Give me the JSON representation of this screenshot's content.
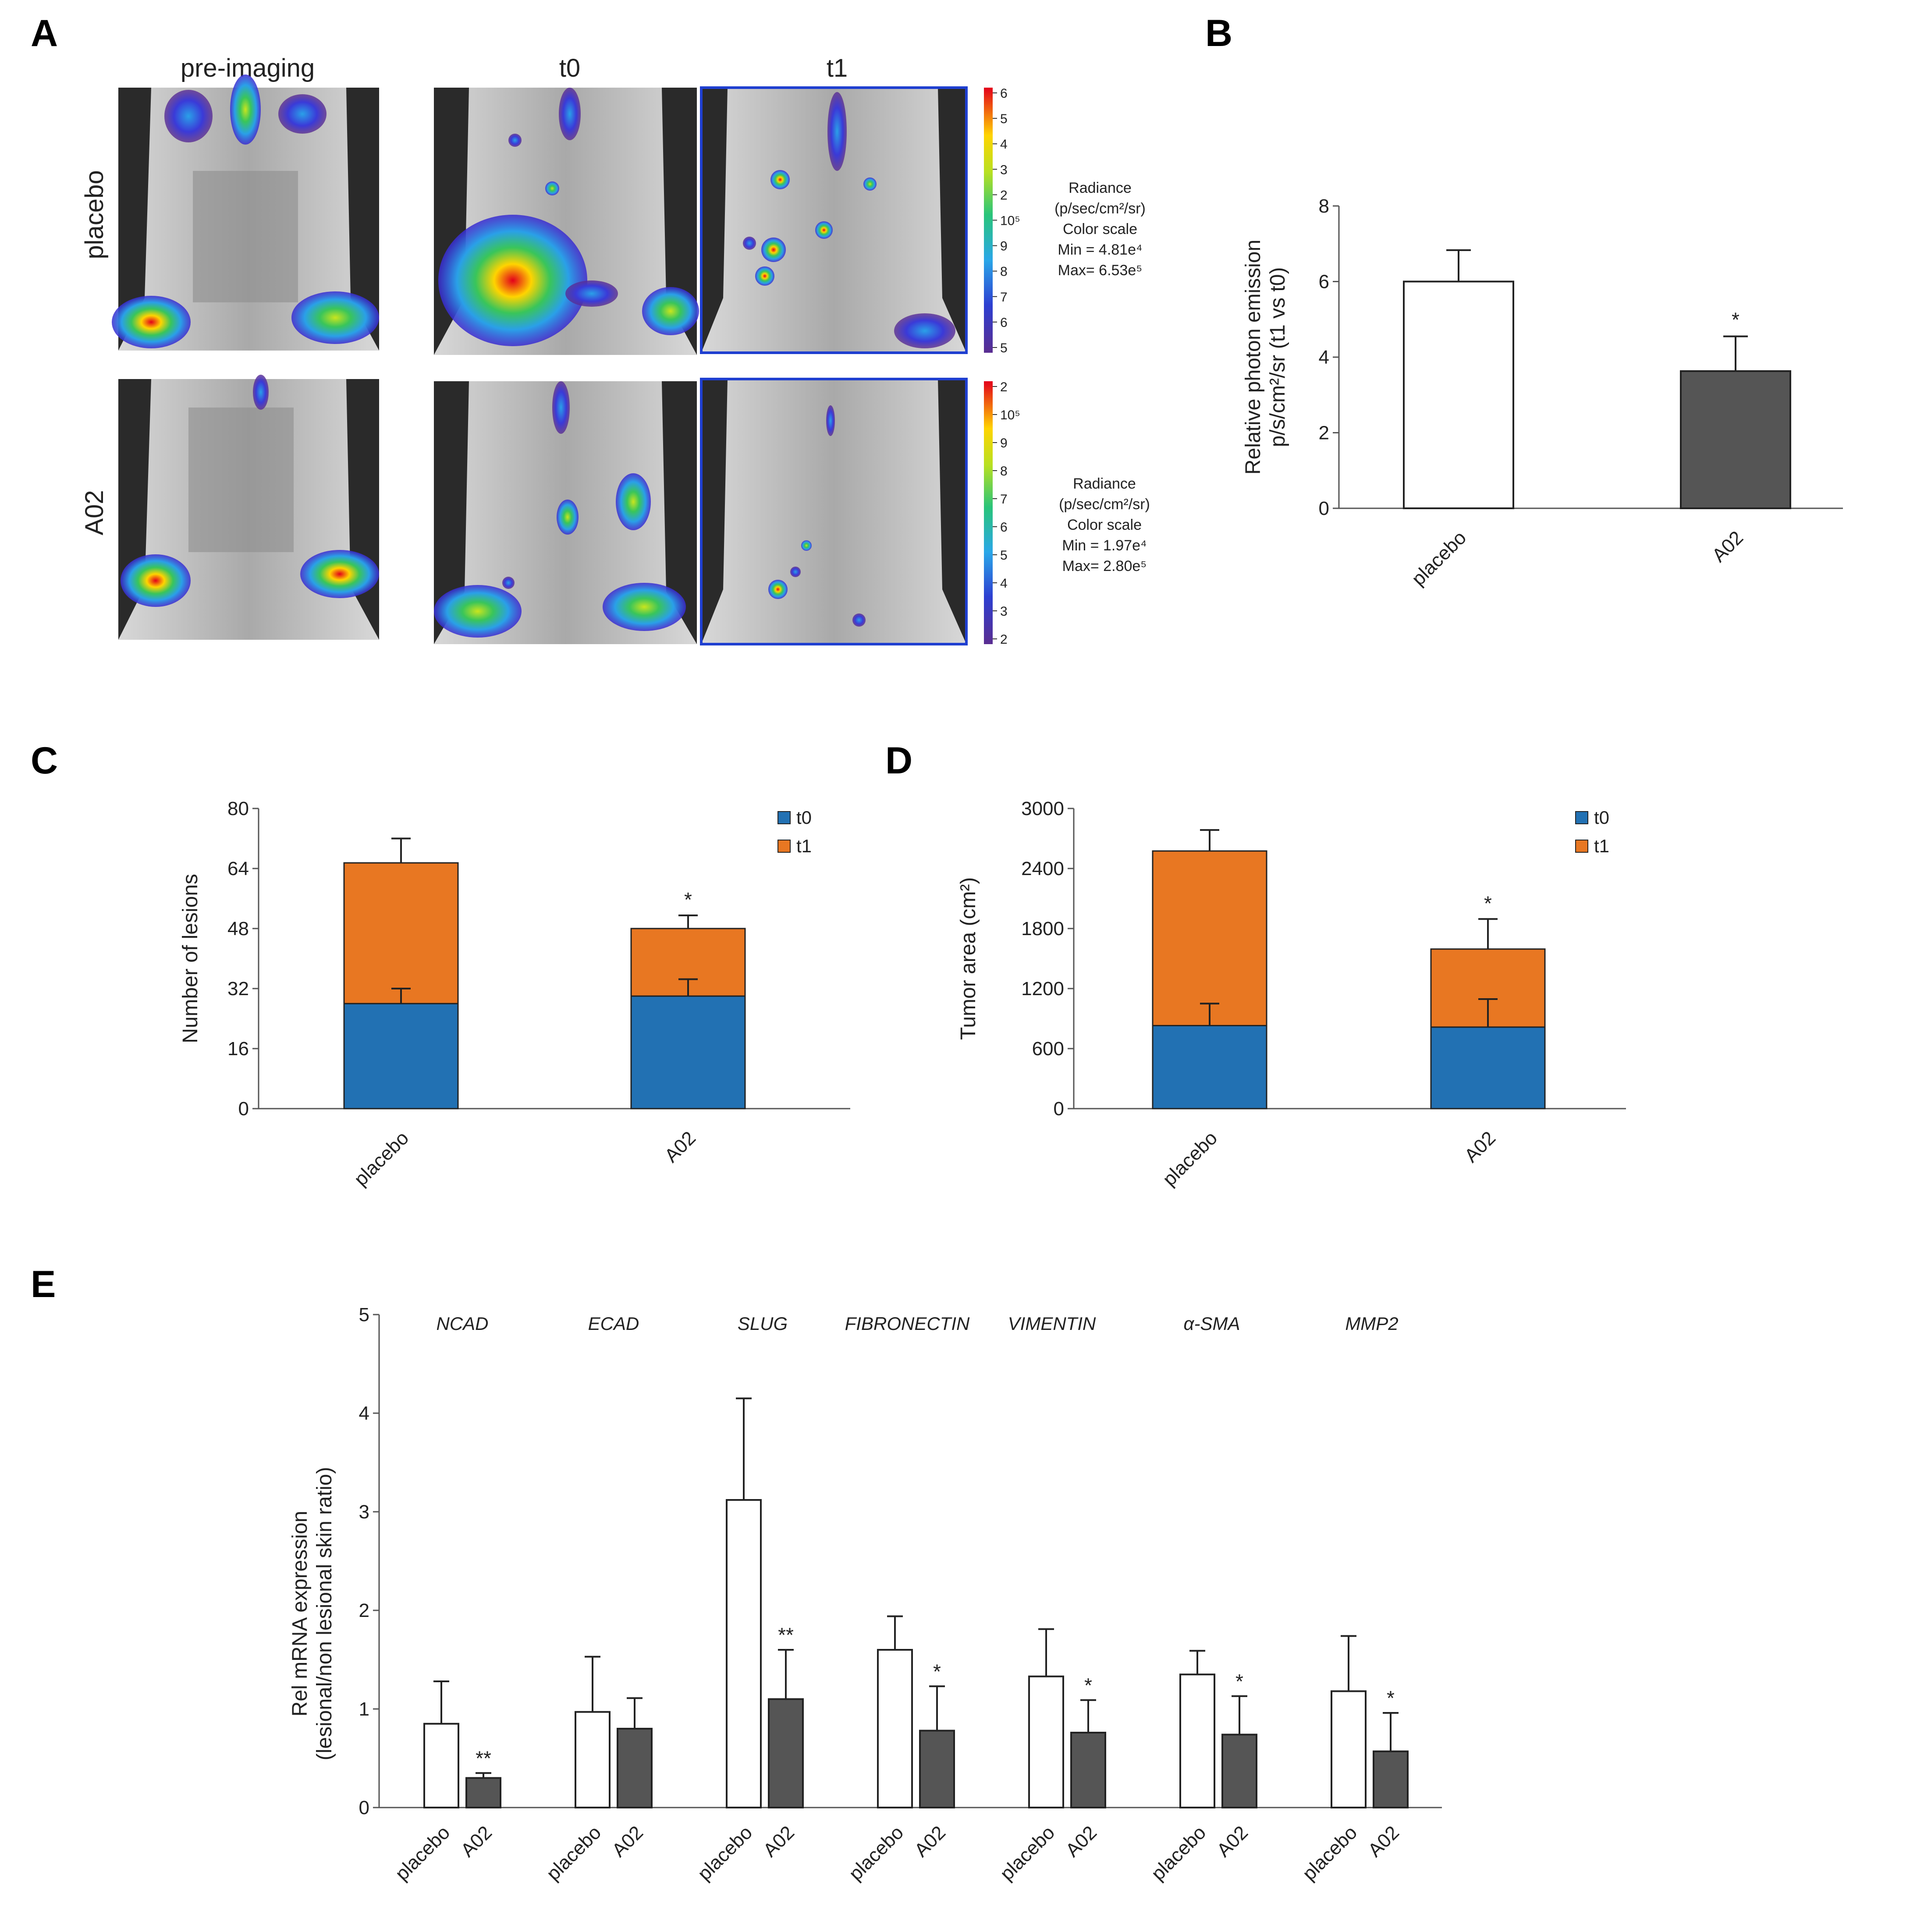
{
  "panels": {
    "a": "A",
    "b": "B",
    "c": "C",
    "d": "D",
    "e": "E"
  },
  "imaging": {
    "col_labels": [
      "pre-imaging",
      "t0",
      "t1"
    ],
    "row_labels": [
      "placebo",
      "A02"
    ],
    "colorbars": [
      {
        "ticks": [
          "6",
          "5",
          "4",
          "3",
          "2",
          "10⁵",
          "9",
          "8",
          "7",
          "6",
          "5"
        ],
        "legend": [
          "Radiance",
          "(p/sec/cm²/sr)",
          "Color scale",
          "Min = 4.81e⁴",
          "Max= 6.53e⁵"
        ]
      },
      {
        "ticks": [
          "2",
          "10⁵",
          "9",
          "8",
          "7",
          "6",
          "5",
          "4",
          "3",
          "2"
        ],
        "legend": [
          "Radiance",
          "(p/sec/cm²/sr)",
          "Color scale",
          "Min = 1.97e⁴",
          "Max= 2.80e⁵"
        ]
      }
    ]
  },
  "chart_data": [
    {
      "id": "B",
      "type": "bar",
      "categories": [
        "placebo",
        "A02"
      ],
      "values": [
        6.0,
        3.63
      ],
      "errors": [
        0.83,
        0.92
      ],
      "significance": [
        "",
        "*"
      ],
      "ylabel_lines": [
        "Relative photon emission",
        "p/s/cm²/sr (t1 vs t0)"
      ],
      "ylim": [
        0,
        8
      ],
      "yticks": [
        0,
        2,
        4,
        6,
        8
      ],
      "colors": [
        "#ffffff",
        "#555555"
      ]
    },
    {
      "id": "C",
      "type": "bar",
      "stacked": true,
      "categories": [
        "placebo",
        "A02"
      ],
      "series": [
        {
          "name": "t0",
          "values": [
            28,
            30
          ],
          "errors": [
            4,
            4.5
          ]
        },
        {
          "name": "t1",
          "values": [
            37.5,
            18
          ],
          "errors": [
            6.5,
            3.5
          ]
        }
      ],
      "significance": [
        "",
        "*"
      ],
      "ylabel": "Number of lesions",
      "ylim": [
        0,
        80
      ],
      "yticks": [
        0,
        16,
        32,
        48,
        64,
        80
      ],
      "colors": [
        "#2271b3",
        "#e87722"
      ]
    },
    {
      "id": "D",
      "type": "bar",
      "stacked": true,
      "categories": [
        "placebo",
        "A02"
      ],
      "series": [
        {
          "name": "t0",
          "values": [
            830,
            815
          ],
          "errors": [
            220,
            280
          ]
        },
        {
          "name": "t1",
          "values": [
            1745,
            780
          ],
          "errors": [
            210,
            300
          ]
        }
      ],
      "significance": [
        "",
        "*"
      ],
      "ylabel": "Tumor area (cm²)",
      "ylim": [
        0,
        3000
      ],
      "yticks": [
        0,
        600,
        1200,
        1800,
        2400,
        3000
      ],
      "colors": [
        "#2271b3",
        "#e87722"
      ]
    },
    {
      "id": "E",
      "type": "bar",
      "genes": [
        "NCAD",
        "ECAD",
        "SLUG",
        "FIBRONECTIN",
        "VIMENTIN",
        "α-SMA",
        "MMP2"
      ],
      "series": [
        {
          "name": "placebo",
          "values": [
            0.85,
            0.97,
            3.12,
            1.6,
            1.33,
            1.35,
            1.18
          ],
          "errors": [
            0.43,
            0.56,
            1.03,
            0.34,
            0.48,
            0.24,
            0.56
          ]
        },
        {
          "name": "A02",
          "values": [
            0.3,
            0.8,
            1.1,
            0.78,
            0.76,
            0.74,
            0.57
          ],
          "errors": [
            0.05,
            0.31,
            0.5,
            0.45,
            0.33,
            0.39,
            0.39
          ]
        }
      ],
      "significance": [
        "**",
        "",
        "**",
        "*",
        "*",
        "*",
        "*"
      ],
      "ylabel_lines": [
        "Rel mRNA expression",
        "(lesional/non lesional skin ratio)"
      ],
      "ylim": [
        0,
        5
      ],
      "yticks": [
        0,
        1,
        2,
        3,
        4,
        5
      ],
      "colors": [
        "#ffffff",
        "#555555"
      ]
    }
  ]
}
